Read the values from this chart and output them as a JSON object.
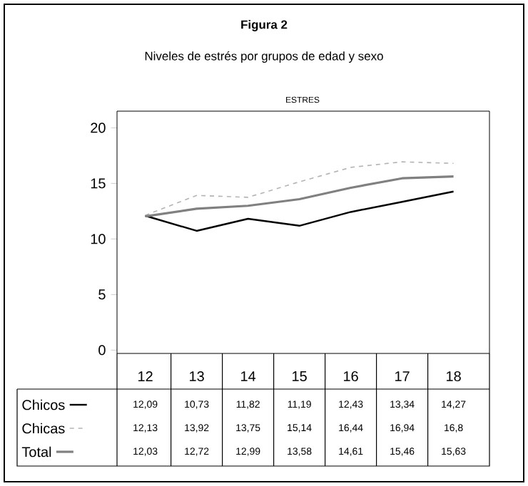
{
  "chart_data": {
    "type": "line",
    "title": "Figura 2",
    "subtitle": "Niveles de estrés por grupos de edad y sexo",
    "annotations": [
      "ESTRES"
    ],
    "categories": [
      "12",
      "13",
      "14",
      "15",
      "16",
      "17",
      "18"
    ],
    "series": [
      {
        "name": "Chicos",
        "color": "#000000",
        "line_style": "solid",
        "values": [
          12.09,
          10.73,
          11.82,
          11.19,
          12.43,
          13.34,
          14.27
        ],
        "value_labels": [
          "12,09",
          "10,73",
          "11,82",
          "11,19",
          "12,43",
          "13,34",
          "14,27"
        ]
      },
      {
        "name": "Chicas",
        "color": "#b4b4b4",
        "line_style": "dashed",
        "values": [
          12.13,
          13.92,
          13.75,
          15.14,
          16.44,
          16.94,
          16.8
        ],
        "value_labels": [
          "12,13",
          "13,92",
          "13,75",
          "15,14",
          "16,44",
          "16,94",
          "16,8"
        ]
      },
      {
        "name": "Total",
        "color": "#808080",
        "line_style": "solid",
        "values": [
          12.03,
          12.72,
          12.99,
          13.58,
          14.61,
          15.46,
          15.63
        ],
        "value_labels": [
          "12,03",
          "12,72",
          "12,99",
          "13,58",
          "14,61",
          "15,46",
          "15,63"
        ]
      }
    ],
    "ylim": [
      -0.3,
      21.5
    ],
    "yticks": [
      0,
      5,
      10,
      15,
      20
    ],
    "grid": false,
    "marker": "none",
    "legend": "bottom left"
  }
}
